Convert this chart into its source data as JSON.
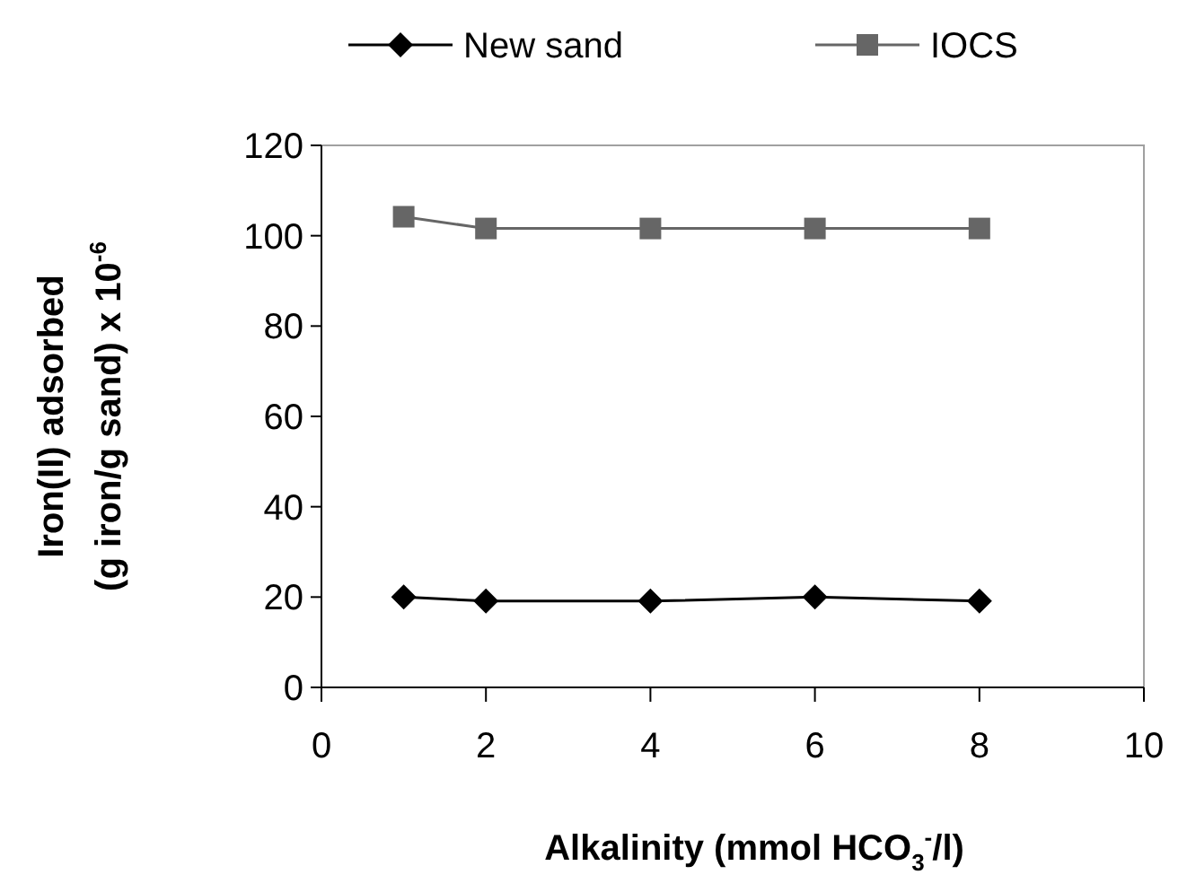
{
  "chart_data": {
    "type": "line",
    "xlabel": "Alkalinity (mmol HCO$_{3}$$^{-}$/l)",
    "ylabel": "Iron(II) adsorbed\n(g iron/g sand) x 10$^{-6}$",
    "x": [
      1,
      2,
      4,
      6,
      8
    ],
    "series": [
      {
        "name": "New sand",
        "color": "#000000",
        "marker": "diamond",
        "values": [
          20,
          19.1,
          19.1,
          20,
          19.1
        ]
      },
      {
        "name": "IOCS",
        "color": "#666666",
        "marker": "square",
        "values": [
          104.2,
          101.6,
          101.6,
          101.6,
          101.6
        ]
      }
    ],
    "xlim": [
      0,
      10
    ],
    "xticks": [
      0,
      2,
      4,
      6,
      8,
      10
    ],
    "ylim": [
      0,
      120
    ],
    "yticks": [
      0,
      20,
      40,
      60,
      80,
      100,
      120
    ],
    "grid": false,
    "legend": "top",
    "line_style": "solid"
  }
}
